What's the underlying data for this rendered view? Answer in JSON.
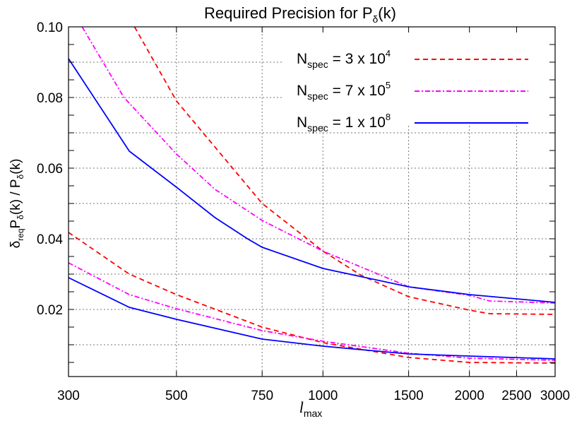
{
  "chart_data": {
    "type": "line",
    "title": {
      "main": "Required Precision for P",
      "sub": "δ",
      "tail": "(k)"
    },
    "xlabel": {
      "main": "l",
      "sub": "max"
    },
    "ylabel": {
      "p1": "δ",
      "p1sub": "req",
      "p2": "P",
      "p2sub": "δ",
      "p3": "(k) / P",
      "p3sub": "δ",
      "p4": "(k)"
    },
    "xscale": "log",
    "xlim": [
      300,
      3000
    ],
    "ylim": [
      0.001,
      0.1
    ],
    "xticks": [
      300,
      500,
      750,
      1000,
      1500,
      2000,
      2500,
      3000
    ],
    "xtick_labels": [
      "300",
      "500",
      "750",
      "1000",
      "1500",
      "2000",
      "2500",
      "3000"
    ],
    "yticks": [
      0.02,
      0.04,
      0.06,
      0.08,
      0.1
    ],
    "ytick_labels": [
      "0.02",
      "0.04",
      "0.06",
      "0.08",
      "0.10"
    ],
    "grid": true,
    "legend_placement": "top-right",
    "series": [
      {
        "name": {
          "base": "N",
          "sub": "spec",
          "text": " = 3 x 10",
          "sup": "4"
        },
        "color": "#ff0000",
        "style": "dashed",
        "curves": [
          {
            "x": [
              410,
              500,
              750,
              1000,
              1200,
              1500,
              2000,
              2200,
              3000
            ],
            "y": [
              0.1,
              0.079,
              0.05,
              0.0365,
              0.0296,
              0.0236,
              0.0198,
              0.0188,
              0.0186
            ]
          },
          {
            "x": [
              300,
              400,
              500,
              750,
              1000,
              1500,
              2000,
              3000
            ],
            "y": [
              0.0418,
              0.03,
              0.0242,
              0.015,
              0.0106,
              0.0064,
              0.005,
              0.0048
            ]
          }
        ]
      },
      {
        "name": {
          "base": "N",
          "sub": "spec",
          "text": " = 7 x 10",
          "sup": "5"
        },
        "color": "#ff00ff",
        "style": "dashdot",
        "curves": [
          {
            "x": [
              320,
              390,
              500,
              600,
              750,
              1000,
              1500,
              2000,
              2200,
              3000
            ],
            "y": [
              0.1,
              0.08,
              0.064,
              0.054,
              0.0452,
              0.0365,
              0.0264,
              0.024,
              0.0224,
              0.0218
            ]
          },
          {
            "x": [
              300,
              400,
              500,
              750,
              1000,
              1500,
              2000,
              3000
            ],
            "y": [
              0.0332,
              0.0242,
              0.0202,
              0.014,
              0.011,
              0.0076,
              0.0062,
              0.0056
            ]
          }
        ]
      },
      {
        "name": {
          "base": "N",
          "sub": "spec",
          "text": " = 1 x 10",
          "sup": "8"
        },
        "color": "#0000ff",
        "style": "solid",
        "curves": [
          {
            "x": [
              300,
              400,
              500,
              600,
              700,
              750,
              1000,
              1500,
              2000,
              2500,
              3000
            ],
            "y": [
              0.091,
              0.0648,
              0.0546,
              0.046,
              0.04,
              0.0376,
              0.0316,
              0.0264,
              0.0242,
              0.023,
              0.022
            ]
          },
          {
            "x": [
              300,
              400,
              500,
              750,
              1000,
              1500,
              2000,
              3000
            ],
            "y": [
              0.029,
              0.0206,
              0.0172,
              0.0116,
              0.0096,
              0.0074,
              0.0068,
              0.006
            ]
          }
        ]
      }
    ]
  }
}
